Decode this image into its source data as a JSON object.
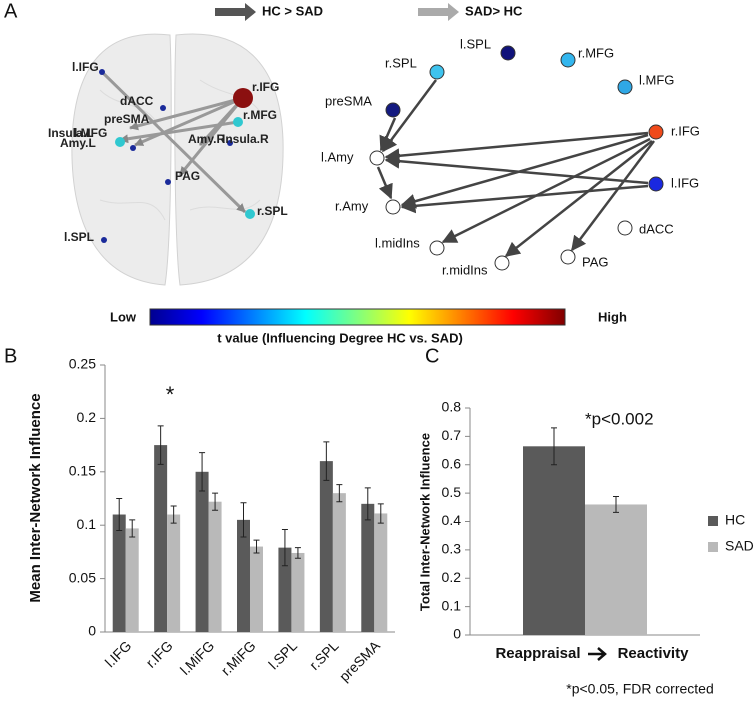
{
  "panel_labels": [
    "A",
    "B",
    "C"
  ],
  "arrow_legend": [
    "HC > SAD",
    "SAD> HC"
  ],
  "brain_labels": [
    "l.IFG",
    "dACC",
    "preSMA",
    "r.IFG",
    "r.MFG",
    "Insula.L",
    "l.MFG",
    "Amy.L",
    "Amy.R",
    "Insula.R",
    "PAG",
    "r.SPL",
    "l.SPL"
  ],
  "network": {
    "nodes": [
      {
        "label": "r.SPL",
        "color": "#3ec3ee"
      },
      {
        "label": "l.SPL",
        "color": "#10127a"
      },
      {
        "label": "preSMA",
        "color": "#141a80"
      },
      {
        "label": "r.MFG",
        "color": "#33b6ee"
      },
      {
        "label": "l.MFG",
        "color": "#2fa8e6"
      },
      {
        "label": "r.IFG",
        "color": "#f04a1a"
      },
      {
        "label": "l.Amy",
        "color": "#ffffff"
      },
      {
        "label": "l.IFG",
        "color": "#1a28e0"
      },
      {
        "label": "r.Amy",
        "color": "#ffffff"
      },
      {
        "label": "l.midIns",
        "color": "#ffffff"
      },
      {
        "label": "r.midIns",
        "color": "#ffffff"
      },
      {
        "label": "dACC",
        "color": "#ffffff"
      },
      {
        "label": "PAG",
        "color": "#ffffff"
      }
    ]
  },
  "colorbar": {
    "low": "Low",
    "high": "High",
    "title": "t value (Influencing Degree HC vs. SAD)"
  },
  "chart_data": [
    {
      "type": "bar",
      "y_label": "Mean Inter-Network Influence",
      "annotation": "*",
      "categories": [
        "l.IFG",
        "r.IFG",
        "l.MiFG",
        "r.MiFG",
        "l.SPL",
        "r.SPL",
        "preSMA"
      ],
      "series": [
        {
          "name": "HC",
          "color": "#5a5a5a",
          "values": [
            0.11,
            0.175,
            0.15,
            0.105,
            0.079,
            0.16,
            0.12
          ],
          "errors": [
            0.015,
            0.018,
            0.018,
            0.016,
            0.017,
            0.018,
            0.015
          ]
        },
        {
          "name": "SAD",
          "color": "#b9b9b9",
          "values": [
            0.097,
            0.11,
            0.122,
            0.08,
            0.074,
            0.13,
            0.111
          ],
          "errors": [
            0.008,
            0.008,
            0.008,
            0.006,
            0.005,
            0.008,
            0.009
          ]
        }
      ],
      "ylim": [
        0,
        0.25
      ],
      "yticks": [
        0,
        0.05,
        0.1,
        0.15,
        0.2,
        0.25
      ]
    },
    {
      "type": "bar",
      "y_label": "Total Inter-Network Influence",
      "x_labels": [
        "Reappraisal",
        "Reactivity"
      ],
      "annotation": "*p<0.002",
      "footnote": "*p<0.05, FDR corrected",
      "series": [
        {
          "name": "HC",
          "color": "#5a5a5a",
          "values": [
            0.665
          ],
          "errors": [
            0.065
          ]
        },
        {
          "name": "SAD",
          "color": "#b9b9b9",
          "values": [
            0.46
          ],
          "errors": [
            0.028
          ]
        }
      ],
      "ylim": [
        0,
        0.8
      ],
      "yticks": [
        0,
        0.1,
        0.2,
        0.3,
        0.4,
        0.5,
        0.6,
        0.7,
        0.8
      ],
      "legend": "right"
    }
  ]
}
